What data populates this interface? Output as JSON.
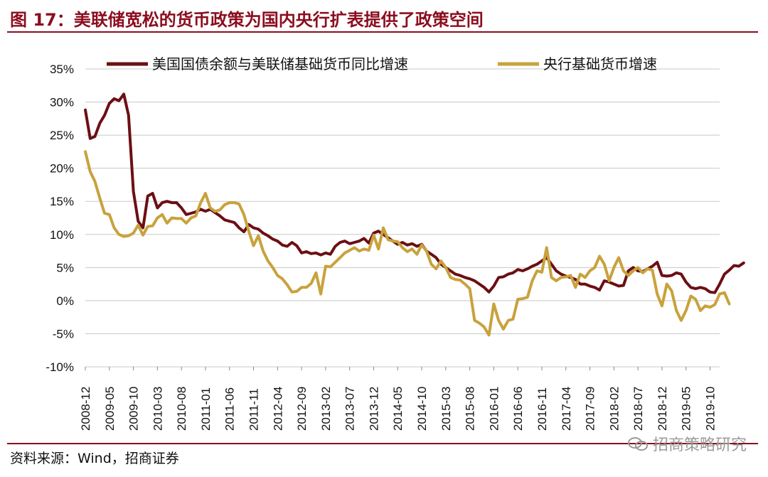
{
  "figure": {
    "title": "图 17：美联储宽松的货币政策为国内央行扩表提供了政策空间",
    "source": "资料来源：Wind，招商证券",
    "watermark": "招商策略研究"
  },
  "colors": {
    "series_1": "#6b0f14",
    "series_2": "#c8a23c",
    "grid": "#c8c8c8",
    "rule": "#8b0d1e"
  },
  "chart_data": {
    "type": "line",
    "title": "美联储宽松的货币政策为国内央行扩表提供了政策空间",
    "xlabel": "",
    "ylabel": "",
    "ylim": [
      -10,
      35
    ],
    "yticks": [
      -10,
      -5,
      0,
      5,
      10,
      15,
      20,
      25,
      30,
      35
    ],
    "ytick_labels": [
      "-10%",
      "-5%",
      "0%",
      "5%",
      "10%",
      "15%",
      "20%",
      "25%",
      "30%",
      "35%"
    ],
    "x_start": "2008-12",
    "x_end": "2019-12",
    "xtick_labels": [
      "2008-12",
      "2009-05",
      "2009-10",
      "2010-03",
      "2010-08",
      "2011-01",
      "2011-06",
      "2011-11",
      "2012-04",
      "2012-09",
      "2013-02",
      "2013-07",
      "2013-12",
      "2014-05",
      "2014-10",
      "2015-03",
      "2015-08",
      "2016-01",
      "2016-06",
      "2016-11",
      "2017-04",
      "2017-09",
      "2018-02",
      "2018-07",
      "2018-12",
      "2019-05",
      "2019-10"
    ],
    "grid": "horizontal",
    "legend": "top",
    "series": [
      {
        "name": "美国国债余额与美联储基础货币同比增速",
        "values": [
          [
            0,
            28.8
          ],
          [
            1,
            24.5
          ],
          [
            2,
            24.8
          ],
          [
            3,
            26.8
          ],
          [
            4,
            28
          ],
          [
            5,
            29.8
          ],
          [
            6,
            30.5
          ],
          [
            7,
            30.2
          ],
          [
            8,
            31.2
          ],
          [
            9,
            28
          ],
          [
            10,
            16.5
          ],
          [
            11,
            12
          ],
          [
            12,
            11
          ],
          [
            13,
            15.8
          ],
          [
            14,
            16.2
          ],
          [
            15,
            14
          ],
          [
            16,
            14.8
          ],
          [
            17,
            15
          ],
          [
            18,
            14.8
          ],
          [
            19,
            14.8
          ],
          [
            20,
            14
          ],
          [
            21,
            13
          ],
          [
            22,
            13.2
          ],
          [
            23,
            13.4
          ],
          [
            24,
            13.8
          ],
          [
            25,
            13.5
          ],
          [
            26,
            13.8
          ],
          [
            27,
            13.3
          ],
          [
            28,
            12.8
          ],
          [
            29,
            12.2
          ],
          [
            30,
            12
          ],
          [
            31,
            11.8
          ],
          [
            32,
            11
          ],
          [
            33,
            10.4
          ],
          [
            34,
            11.5
          ],
          [
            35,
            11
          ],
          [
            36,
            10.8
          ],
          [
            37,
            10.2
          ],
          [
            38,
            9.8
          ],
          [
            39,
            9.3
          ],
          [
            40,
            9
          ],
          [
            41,
            8.4
          ],
          [
            42,
            8.2
          ],
          [
            43,
            8.8
          ],
          [
            44,
            8.3
          ],
          [
            45,
            7.2
          ],
          [
            46,
            7.4
          ],
          [
            47,
            7.1
          ],
          [
            48,
            7.2
          ],
          [
            49,
            6.9
          ],
          [
            50,
            7.2
          ],
          [
            51,
            7
          ],
          [
            52,
            8.2
          ],
          [
            53,
            8.8
          ],
          [
            54,
            9
          ],
          [
            55,
            8.6
          ],
          [
            56,
            8.8
          ],
          [
            57,
            9
          ],
          [
            58,
            9.4
          ],
          [
            59,
            8.7
          ],
          [
            60,
            10.2
          ],
          [
            61,
            10.5
          ],
          [
            62,
            10
          ],
          [
            63,
            9.5
          ],
          [
            64,
            9
          ],
          [
            65,
            8.5
          ],
          [
            66,
            8.8
          ],
          [
            67,
            8.4
          ],
          [
            68,
            8.6
          ],
          [
            69,
            8.2
          ],
          [
            70,
            8.5
          ],
          [
            71,
            7.5
          ],
          [
            72,
            7
          ],
          [
            73,
            6.5
          ],
          [
            74,
            5.5
          ],
          [
            75,
            5
          ],
          [
            76,
            4.5
          ],
          [
            77,
            4
          ],
          [
            78,
            3.8
          ],
          [
            79,
            3.5
          ],
          [
            80,
            3.3
          ],
          [
            81,
            3
          ],
          [
            82,
            2.5
          ],
          [
            83,
            2
          ],
          [
            84,
            1.3
          ],
          [
            85,
            2.2
          ],
          [
            86,
            3.5
          ],
          [
            87,
            3.6
          ],
          [
            88,
            4
          ],
          [
            89,
            4.2
          ],
          [
            90,
            4.7
          ],
          [
            91,
            4.5
          ],
          [
            92,
            4.8
          ],
          [
            93,
            5.2
          ],
          [
            94,
            5.5
          ],
          [
            95,
            6
          ],
          [
            96,
            6.5
          ],
          [
            97,
            5.5
          ],
          [
            98,
            4.5
          ],
          [
            99,
            4
          ],
          [
            100,
            3.7
          ],
          [
            101,
            3.5
          ],
          [
            102,
            3.2
          ],
          [
            103,
            2.5
          ],
          [
            104,
            2.5
          ],
          [
            105,
            2.2
          ],
          [
            106,
            2
          ],
          [
            107,
            1.6
          ],
          [
            108,
            3
          ],
          [
            109,
            2.8
          ],
          [
            110,
            2.5
          ],
          [
            111,
            2.2
          ],
          [
            112,
            2.3
          ],
          [
            113,
            4.5
          ],
          [
            114,
            5
          ],
          [
            115,
            4.5
          ],
          [
            116,
            4.4
          ],
          [
            117,
            4.8
          ],
          [
            118,
            5.2
          ],
          [
            119,
            5.8
          ],
          [
            120,
            3.8
          ],
          [
            121,
            3.7
          ],
          [
            122,
            3.8
          ],
          [
            123,
            4.2
          ],
          [
            124,
            4
          ],
          [
            125,
            2.8
          ],
          [
            126,
            2
          ],
          [
            127,
            1.8
          ],
          [
            128,
            2
          ],
          [
            129,
            1.8
          ],
          [
            130,
            1.3
          ],
          [
            131,
            1.2
          ],
          [
            132,
            2.5
          ],
          [
            133,
            4
          ],
          [
            134,
            4.6
          ],
          [
            135,
            5.3
          ],
          [
            136,
            5.2
          ],
          [
            137,
            5.7
          ]
        ]
      },
      {
        "name": "央行基础货币增速",
        "values": [
          [
            0,
            22.5
          ],
          [
            1,
            19.5
          ],
          [
            2,
            18
          ],
          [
            3,
            15.5
          ],
          [
            4,
            13.2
          ],
          [
            5,
            13
          ],
          [
            6,
            11
          ],
          [
            7,
            10
          ],
          [
            8,
            9.7
          ],
          [
            9,
            9.8
          ],
          [
            10,
            10.2
          ],
          [
            11,
            11.4
          ],
          [
            12,
            9.9
          ],
          [
            13,
            11.2
          ],
          [
            14,
            11.3
          ],
          [
            15,
            12.5
          ],
          [
            16,
            13
          ],
          [
            17,
            11.7
          ],
          [
            18,
            12.5
          ],
          [
            19,
            12.4
          ],
          [
            20,
            12.4
          ],
          [
            21,
            11.7
          ],
          [
            22,
            12.5
          ],
          [
            23,
            12.8
          ],
          [
            24,
            14.8
          ],
          [
            25,
            16.2
          ],
          [
            26,
            14
          ],
          [
            27,
            13.5
          ],
          [
            28,
            13.7
          ],
          [
            29,
            14.5
          ],
          [
            30,
            14.8
          ],
          [
            31,
            14.8
          ],
          [
            32,
            14.6
          ],
          [
            33,
            13
          ],
          [
            34,
            10.5
          ],
          [
            35,
            8.3
          ],
          [
            36,
            9.8
          ],
          [
            37,
            7.5
          ],
          [
            38,
            6
          ],
          [
            39,
            5
          ],
          [
            40,
            3.8
          ],
          [
            41,
            3.3
          ],
          [
            42,
            2.4
          ],
          [
            43,
            1.3
          ],
          [
            44,
            1.4
          ],
          [
            45,
            2
          ],
          [
            46,
            2
          ],
          [
            47,
            2.6
          ],
          [
            48,
            4.2
          ],
          [
            49,
            1
          ],
          [
            50,
            5.2
          ],
          [
            51,
            5.1
          ],
          [
            52,
            5.8
          ],
          [
            53,
            6.5
          ],
          [
            54,
            7.2
          ],
          [
            55,
            7.6
          ],
          [
            56,
            8
          ],
          [
            57,
            7.5
          ],
          [
            58,
            7.8
          ],
          [
            59,
            7.6
          ],
          [
            60,
            9.9
          ],
          [
            61,
            7.8
          ],
          [
            62,
            11
          ],
          [
            63,
            9.2
          ],
          [
            64,
            9
          ],
          [
            65,
            8.9
          ],
          [
            66,
            8
          ],
          [
            67,
            7.4
          ],
          [
            68,
            7.8
          ],
          [
            69,
            7
          ],
          [
            70,
            8.4
          ],
          [
            71,
            7.5
          ],
          [
            72,
            5.5
          ],
          [
            73,
            4.8
          ],
          [
            74,
            6
          ],
          [
            75,
            5
          ],
          [
            76,
            3.5
          ],
          [
            77,
            3.2
          ],
          [
            78,
            3.1
          ],
          [
            79,
            2.5
          ],
          [
            80,
            1.8
          ],
          [
            81,
            -3
          ],
          [
            82,
            -3.4
          ],
          [
            83,
            -4
          ],
          [
            84,
            -5.2
          ],
          [
            85,
            -0.5
          ],
          [
            86,
            -3
          ],
          [
            87,
            -4.3
          ],
          [
            88,
            -3
          ],
          [
            89,
            -2.8
          ],
          [
            90,
            0.2
          ],
          [
            91,
            0.3
          ],
          [
            92,
            0.5
          ],
          [
            93,
            3
          ],
          [
            94,
            4.5
          ],
          [
            95,
            4.3
          ],
          [
            96,
            8
          ],
          [
            97,
            3.5
          ],
          [
            98,
            3
          ],
          [
            99,
            3.5
          ],
          [
            100,
            3.6
          ],
          [
            101,
            3.8
          ],
          [
            102,
            2
          ],
          [
            103,
            4
          ],
          [
            104,
            3.5
          ],
          [
            105,
            4.5
          ],
          [
            106,
            5
          ],
          [
            107,
            6.7
          ],
          [
            108,
            5.5
          ],
          [
            109,
            3
          ],
          [
            110,
            5
          ],
          [
            111,
            6.5
          ],
          [
            112,
            4.5
          ],
          [
            113,
            3.8
          ],
          [
            114,
            4.5
          ],
          [
            115,
            5
          ],
          [
            116,
            4.2
          ],
          [
            117,
            4.8
          ],
          [
            118,
            4.6
          ],
          [
            119,
            1
          ],
          [
            120,
            -0.8
          ],
          [
            121,
            2.5
          ],
          [
            122,
            1.5
          ],
          [
            123,
            -1.5
          ],
          [
            124,
            -3
          ],
          [
            125,
            -1.5
          ],
          [
            126,
            0.7
          ],
          [
            127,
            0.2
          ],
          [
            128,
            -1.5
          ],
          [
            129,
            -0.8
          ],
          [
            130,
            -1
          ],
          [
            131,
            -0.6
          ],
          [
            132,
            1
          ],
          [
            133,
            1.2
          ],
          [
            134,
            -0.5
          ]
        ]
      }
    ]
  }
}
